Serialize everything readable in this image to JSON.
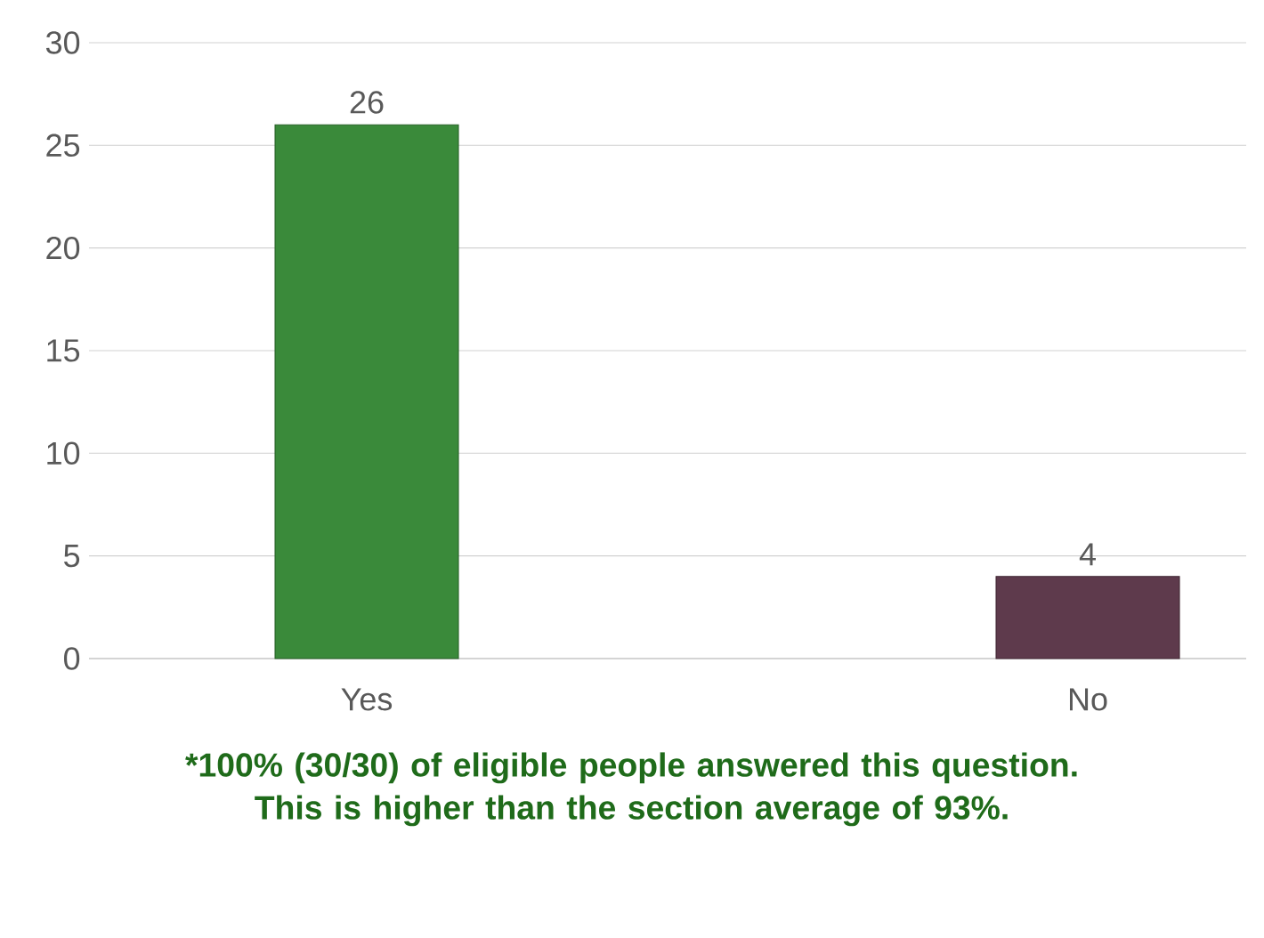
{
  "chart_data": {
    "type": "bar",
    "categories": [
      "Yes",
      "No"
    ],
    "values": [
      26,
      4
    ],
    "colors": [
      "#3a8a3a",
      "#5e3a4c"
    ],
    "ylim": [
      0,
      30
    ],
    "yticks": [
      0,
      5,
      10,
      15,
      20,
      25,
      30
    ],
    "grid": "y",
    "data_labels": true,
    "annotations": [
      "*100% (30/30) of eligible people answered this question. This is higher than the section average of 93%."
    ]
  }
}
